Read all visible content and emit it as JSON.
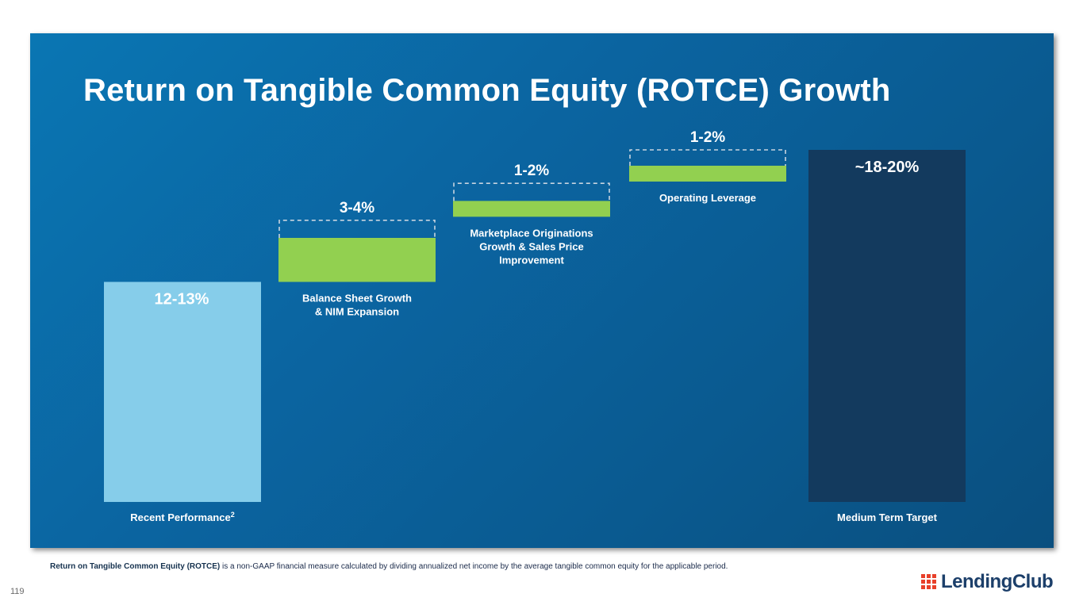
{
  "page": {
    "title": "Return on Tangible Common Equity (ROTCE) Growth",
    "footnote_bold": "Return on Tangible Common Equity (ROTCE)",
    "footnote_rest": " is a non-GAAP financial measure calculated by dividing annualized net income by the average tangible common equity for the applicable period.",
    "page_number": "119",
    "logo_text": "LendingClub",
    "logo_icon": "lendingclub-grid-logo-icon"
  },
  "colors": {
    "panel": "#0b66a3",
    "recent_bar": "#86cdea",
    "increment_bar": "#92d050",
    "target_bar": "#133a5e",
    "dashed_outline": "#c8d4e0",
    "text": "#ffffff",
    "logo_red": "#e8402a",
    "logo_blue": "#1c3f6a"
  },
  "chart_data": {
    "type": "bar",
    "subtype": "waterfall",
    "unit": "%",
    "ylim": [
      0,
      20
    ],
    "grid": false,
    "categories": [
      "Recent Performance",
      "Balance Sheet Growth & NIM Expansion",
      "Marketplace Originations Growth & Sales Price Improvement",
      "Operating Leverage",
      "Medium Term Target"
    ],
    "bars": [
      {
        "kind": "total",
        "label_lines": [
          "Recent Performance"
        ],
        "label_sup": "2",
        "label_position": "below",
        "value_label": "12-13%",
        "low": 12,
        "high": 13,
        "base": 0,
        "top": 12.5
      },
      {
        "kind": "increment",
        "label_lines": [
          "Balance Sheet Growth",
          "& NIM Expansion"
        ],
        "label_position": "below",
        "value_label": "3-4%",
        "low": 3,
        "high": 4,
        "base": 12.5,
        "top": 15.0,
        "range_top": 16.0
      },
      {
        "kind": "increment",
        "label_lines": [
          "Marketplace Originations",
          "Growth & Sales Price",
          "Improvement"
        ],
        "label_position": "below",
        "value_label": "1-2%",
        "low": 1,
        "high": 2,
        "base": 16.2,
        "top": 17.1,
        "range_top": 18.1
      },
      {
        "kind": "increment",
        "label_lines": [
          "Operating Leverage"
        ],
        "label_position": "below",
        "value_label": "1-2%",
        "low": 1,
        "high": 2,
        "base": 18.2,
        "top": 19.1,
        "range_top": 20.0
      },
      {
        "kind": "total",
        "label_lines": [
          "Medium Term Target"
        ],
        "label_position": "below",
        "value_label": "~18-20%",
        "low": 18,
        "high": 20,
        "base": 0,
        "top": 20.0
      }
    ]
  }
}
